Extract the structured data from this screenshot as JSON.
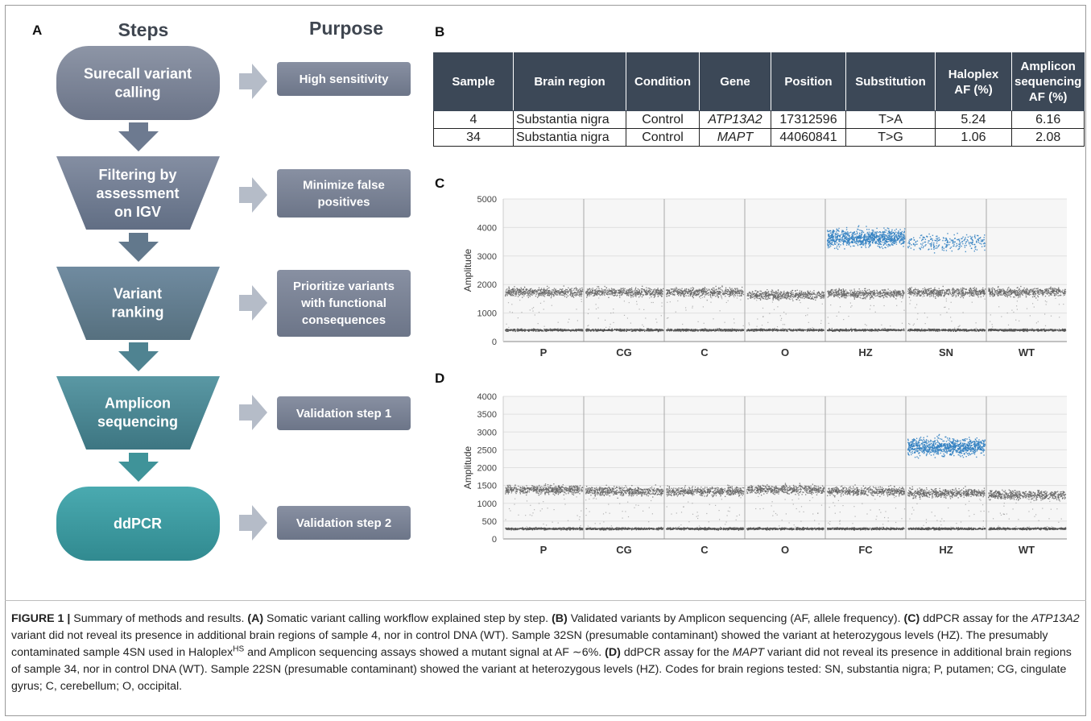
{
  "panel_a": {
    "letter": "A",
    "steps_heading": "Steps",
    "purpose_heading": "Purpose",
    "steps": [
      {
        "lines": [
          "Surecall variant",
          "calling"
        ],
        "purpose": [
          "High sensitivity"
        ]
      },
      {
        "lines": [
          "Filtering by",
          "assessment",
          "on IGV"
        ],
        "purpose": [
          "Minimize false",
          "positives"
        ]
      },
      {
        "lines": [
          "Variant",
          "ranking"
        ],
        "purpose": [
          "Prioritize variants",
          "with functional",
          "consequences"
        ]
      },
      {
        "lines": [
          "Amplicon",
          "sequencing"
        ],
        "purpose": [
          "Validation step 1"
        ]
      },
      {
        "lines": [
          "ddPCR"
        ],
        "purpose": [
          "Validation step 2"
        ]
      }
    ],
    "colors": {
      "step1": "#7a8294",
      "step2": "#717c90",
      "step3": "#617a8c",
      "step4": "#4a8592",
      "step5": "#3b979c",
      "purpose": "#7a8396",
      "arrow": "#b3bac6"
    }
  },
  "panel_b": {
    "letter": "B",
    "headers": [
      "Sample",
      "Brain region",
      "Condition",
      "Gene",
      "Position",
      "Substitution",
      "Haloplex AF (%)",
      "Amplicon sequencing AF (%)"
    ],
    "rows": [
      [
        "4",
        "Substantia nigra",
        "Control",
        "ATP13A2",
        "17312596",
        "T>A",
        "5.24",
        "6.16"
      ],
      [
        "34",
        "Substantia nigra",
        "Control",
        "MAPT",
        "44060841",
        "T>G",
        "1.06",
        "2.08"
      ]
    ]
  },
  "panel_c": {
    "letter": "C",
    "chart_data": {
      "type": "scatter",
      "ylabel": "Amplitude",
      "ylim": [
        0,
        5000
      ],
      "yticks": [
        "0",
        "1000",
        "2000",
        "3000",
        "4000",
        "5000"
      ],
      "categories": [
        "P",
        "CG",
        "C",
        "O",
        "HZ",
        "SN",
        "WT"
      ],
      "series": [
        {
          "color": "#6e6e6e",
          "band_low_center": [
            420,
            420,
            420,
            420,
            420,
            420,
            420
          ],
          "band_high_center": [
            1750,
            1750,
            1750,
            1650,
            1700,
            1750,
            1750
          ]
        },
        {
          "color": "#2f7fc1",
          "positive_center": [
            null,
            null,
            null,
            null,
            3650,
            3500,
            null
          ]
        }
      ]
    }
  },
  "panel_d": {
    "letter": "D",
    "chart_data": {
      "type": "scatter",
      "ylabel": "Amplitude",
      "ylim": [
        0,
        4000
      ],
      "yticks": [
        "0",
        "500",
        "1000",
        "1500",
        "2000",
        "2500",
        "3000",
        "3500",
        "4000"
      ],
      "categories": [
        "P",
        "CG",
        "C",
        "O",
        "FC",
        "HZ",
        "WT"
      ],
      "series": [
        {
          "color": "#6e6e6e",
          "band_low_center": [
            300,
            300,
            300,
            300,
            300,
            300,
            300
          ],
          "band_high_center": [
            1400,
            1350,
            1350,
            1400,
            1350,
            1300,
            1250
          ]
        },
        {
          "color": "#2f7fc1",
          "positive_center": [
            null,
            null,
            null,
            null,
            null,
            2600,
            null
          ]
        }
      ]
    }
  },
  "caption": {
    "fig_label": "FIGURE 1 |",
    "t1": " Summary of methods and results. ",
    "la": "(A)",
    "t2": " Somatic variant calling workflow explained step by step. ",
    "lb": "(B)",
    "t3": " Validated variants by Amplicon sequencing (AF, allele frequency). ",
    "lc": "(C)",
    "t4": " ddPCR assay for the ",
    "g1": "ATP13A2",
    "t5": " variant did not reveal its presence in additional brain regions of sample 4, nor in control DNA (WT). Sample 32SN (presumable contaminant) showed the variant at heterozygous levels (HZ). The presumably contaminated sample 4SN used in Haloplex",
    "sup": "HS",
    "t6": " and Amplicon sequencing assays showed a mutant signal at AF ∼6%. ",
    "ld": "(D)",
    "t7": " ddPCR assay for the ",
    "g2": "MAPT",
    "t8": " variant did not reveal its presence in additional brain regions of sample 34, nor in control DNA (WT). Sample 22SN (presumable contaminant) showed the variant at heterozygous levels (HZ). Codes for brain regions tested: SN, substantia nigra; P, putamen; CG, cingulate gyrus; C, cerebellum; O, occipital."
  }
}
